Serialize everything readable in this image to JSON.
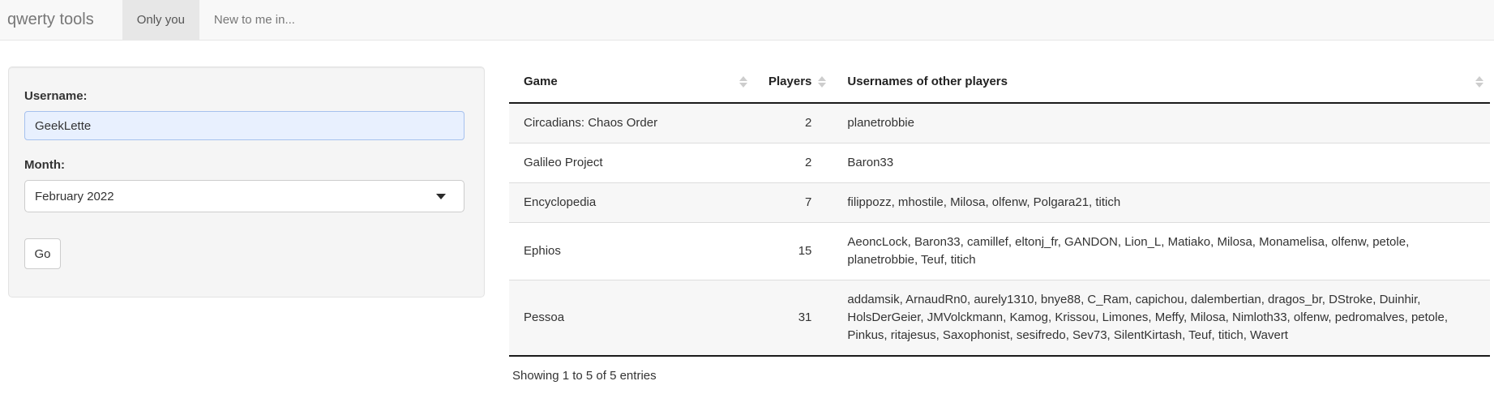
{
  "navbar": {
    "brand": "qwerty tools",
    "tabs": [
      {
        "label": "Only you",
        "active": true
      },
      {
        "label": "New to me in...",
        "active": false
      }
    ]
  },
  "form": {
    "username_label": "Username:",
    "username_value": "GeekLette",
    "month_label": "Month:",
    "month_value": "February 2022",
    "go_label": "Go"
  },
  "table": {
    "columns": [
      "Game",
      "Players",
      "Usernames of other players"
    ],
    "rows": [
      {
        "game": "Circadians: Chaos Order",
        "players": "2",
        "usernames": "planetrobbie"
      },
      {
        "game": "Galileo Project",
        "players": "2",
        "usernames": "Baron33"
      },
      {
        "game": "Encyclopedia",
        "players": "7",
        "usernames": "filippozz, mhostile, Milosa, olfenw, Polgara21, titich"
      },
      {
        "game": "Ephios",
        "players": "15",
        "usernames": "AeoncLock, Baron33, camillef, eltonj_fr, GANDON, Lion_L, Matiako, Milosa, Monamelisa, olfenw, petole, planetrobbie, Teuf, titich"
      },
      {
        "game": "Pessoa",
        "players": "31",
        "usernames": "addamsik, ArnaudRn0, aurely1310, bnye88, C_Ram, capichou, dalembertian, dragos_br, DStroke, Duinhir, HolsDerGeier, JMVolckmann, Kamog, Krissou, Limones, Meffy, Milosa, Nimloth33, olfenw, pedromalves, petole, Pinkus, ritajesus, Saxophonist, sesifredo, Sev73, SilentKirtash, Teuf, titich, Wavert"
      }
    ],
    "summary": "Showing 1 to 5 of 5 entries"
  },
  "icons": {
    "select_caret": "caret-down-icon",
    "sort": "sort-arrows-icon"
  },
  "colors": {
    "navbar_bg": "#f8f8f8",
    "tab_active_bg": "#e7e7e7",
    "panel_bg": "#f5f5f5",
    "autofill_input_bg": "#e8f0fe",
    "autofill_input_border": "#a6c1ee",
    "table_stripe": "#f7f7f7",
    "table_strong_border": "#1a1a1a"
  }
}
